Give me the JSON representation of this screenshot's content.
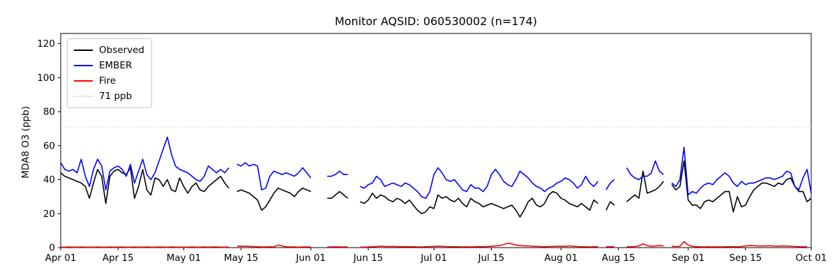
{
  "title": "Monitor AQSID: 060530002 (n=174)",
  "legend": {
    "items": [
      {
        "label": "Observed",
        "color": "#000000",
        "style": "solid"
      },
      {
        "label": "EMBER",
        "color": "#0000ff",
        "style": "solid"
      },
      {
        "label": "Fire",
        "color": "#ff0000",
        "style": "solid"
      },
      {
        "label": "71 ppb",
        "color": "#d3d3d3",
        "style": "dotted"
      }
    ]
  },
  "chart_data": {
    "type": "line",
    "title": "Monitor AQSID: 060530002 (n=174)",
    "xlabel": "",
    "ylabel": "MDA8 O3 (ppb)",
    "x_unit": "days since Apr 01",
    "xlim": [
      0,
      183
    ],
    "ylim": [
      0,
      126
    ],
    "grid": false,
    "legend_position": "upper left",
    "y_ticks": [
      0,
      20,
      40,
      60,
      80,
      100,
      120
    ],
    "x_ticks": [
      {
        "day": 0,
        "label": "Apr 01"
      },
      {
        "day": 14,
        "label": "Apr 15"
      },
      {
        "day": 30,
        "label": "May 01"
      },
      {
        "day": 44,
        "label": "May 15"
      },
      {
        "day": 61,
        "label": "Jun 01"
      },
      {
        "day": 75,
        "label": "Jun 15"
      },
      {
        "day": 91,
        "label": "Jul 01"
      },
      {
        "day": 105,
        "label": "Jul 15"
      },
      {
        "day": 122,
        "label": "Aug 01"
      },
      {
        "day": 136,
        "label": "Aug 15"
      },
      {
        "day": 153,
        "label": "Sep 01"
      },
      {
        "day": 167,
        "label": "Sep 15"
      },
      {
        "day": 183,
        "label": "Oct 01"
      }
    ],
    "threshold": {
      "value": 71,
      "label": "71 ppb",
      "color": "#d3d3d3",
      "line_style": "dotted"
    },
    "series": [
      {
        "name": "Observed",
        "color": "#000000",
        "values": [
          44,
          42,
          41,
          40,
          39,
          38,
          36,
          29,
          38,
          46,
          42,
          26,
          42,
          45,
          46,
          44,
          43,
          47,
          29,
          36,
          46,
          34,
          31,
          41,
          40,
          36,
          40,
          34,
          33,
          41,
          36,
          32,
          36,
          38,
          34,
          33,
          36,
          38,
          40,
          42,
          38,
          35,
          null,
          33,
          34,
          33,
          32,
          30,
          28,
          22,
          24,
          28,
          32,
          35,
          34,
          33,
          32,
          30,
          33,
          35,
          34,
          33,
          null,
          null,
          null,
          29,
          29,
          31,
          33,
          31,
          29,
          null,
          null,
          27,
          26,
          28,
          32,
          29,
          31,
          30,
          28,
          27,
          29,
          28,
          26,
          28,
          25,
          22,
          20,
          21,
          24,
          23,
          31,
          29,
          30,
          28,
          27,
          29,
          26,
          24,
          29,
          27,
          26,
          24,
          25,
          26,
          25,
          24,
          23,
          24,
          25,
          22,
          18,
          22,
          27,
          29,
          25,
          24,
          26,
          31,
          33,
          32,
          29,
          28,
          26,
          25,
          24,
          26,
          24,
          22,
          28,
          26,
          null,
          22,
          27,
          25,
          null,
          null,
          27,
          29,
          31,
          29,
          45,
          32,
          33,
          34,
          36,
          39,
          null,
          37,
          34,
          36,
          51,
          28,
          25,
          25,
          23,
          27,
          28,
          27,
          29,
          31,
          33,
          33,
          21,
          30,
          24,
          25,
          30,
          34,
          36,
          38,
          38,
          37,
          36,
          38,
          37,
          40,
          41,
          36,
          33,
          33,
          27,
          29
        ]
      },
      {
        "name": "EMBER",
        "color": "#0000ff",
        "values": [
          50,
          46,
          45,
          46,
          44,
          52,
          42,
          36,
          46,
          52,
          48,
          34,
          45,
          47,
          48,
          46,
          42,
          49,
          38,
          45,
          52,
          43,
          40,
          44,
          51,
          58,
          65,
          55,
          48,
          46,
          45,
          44,
          42,
          40,
          39,
          42,
          48,
          46,
          44,
          46,
          44,
          47,
          null,
          49,
          48,
          50,
          48,
          49,
          48,
          34,
          35,
          42,
          45,
          44,
          43,
          44,
          43,
          42,
          44,
          47,
          44,
          41,
          null,
          null,
          null,
          42,
          42,
          43,
          45,
          43,
          43,
          null,
          null,
          36,
          35,
          37,
          38,
          42,
          40,
          36,
          37,
          38,
          37,
          36,
          38,
          37,
          35,
          33,
          30,
          29,
          33,
          43,
          47,
          44,
          40,
          39,
          40,
          37,
          34,
          33,
          37,
          35,
          35,
          33,
          36,
          43,
          46,
          43,
          39,
          37,
          36,
          40,
          45,
          43,
          41,
          38,
          36,
          35,
          33,
          35,
          36,
          38,
          39,
          41,
          40,
          38,
          35,
          37,
          42,
          38,
          36,
          39,
          null,
          34,
          38,
          40,
          null,
          null,
          47,
          43,
          41,
          40,
          42,
          42,
          44,
          51,
          45,
          43,
          null,
          38,
          36,
          40,
          59,
          31,
          33,
          32,
          35,
          37,
          38,
          37,
          40,
          42,
          44,
          42,
          38,
          36,
          39,
          37,
          38,
          38,
          39,
          40,
          41,
          41,
          40,
          41,
          42,
          45,
          44,
          36,
          34,
          41,
          46,
          32
        ]
      },
      {
        "name": "Fire",
        "color": "#ff0000",
        "values": [
          0.3,
          0.3,
          0.4,
          0.3,
          0.3,
          0.4,
          0.3,
          0.3,
          0.3,
          0.4,
          0.3,
          0.3,
          0.4,
          0.3,
          0.3,
          0.4,
          0.3,
          0.3,
          0.4,
          0.3,
          0.3,
          0.4,
          0.3,
          0.3,
          0.4,
          0.3,
          0.3,
          0.4,
          0.3,
          0.3,
          0.3,
          0.3,
          0.4,
          0.3,
          0.3,
          0.4,
          0.3,
          0.4,
          0.4,
          0.3,
          0.3,
          0.4,
          null,
          0.8,
          0.9,
          0.8,
          0.7,
          0.6,
          0.5,
          0.4,
          0.4,
          0.5,
          0.4,
          1.5,
          1.0,
          0.5,
          0.4,
          0.4,
          0.3,
          0.4,
          0.4,
          0.4,
          null,
          null,
          null,
          0.4,
          0.4,
          0.5,
          0.4,
          0.4,
          0.4,
          null,
          null,
          0.3,
          0.3,
          0.4,
          0.5,
          0.6,
          0.8,
          0.7,
          0.6,
          0.7,
          0.6,
          0.5,
          0.6,
          0.5,
          0.5,
          0.4,
          0.4,
          0.5,
          0.6,
          0.7,
          0.8,
          0.7,
          0.6,
          0.5,
          0.6,
          0.5,
          0.4,
          0.5,
          0.4,
          0.5,
          0.6,
          0.5,
          0.6,
          0.8,
          1.0,
          1.2,
          1.8,
          2.5,
          2.2,
          1.5,
          1.2,
          1.0,
          1.0,
          0.8,
          0.7,
          0.6,
          0.5,
          0.6,
          0.7,
          0.8,
          0.8,
          0.7,
          1.0,
          0.8,
          0.6,
          0.5,
          0.5,
          0.4,
          0.5,
          0.6,
          null,
          0.5,
          0.5,
          0.6,
          null,
          null,
          0.5,
          0.5,
          0.6,
          1.0,
          2.2,
          1.2,
          0.8,
          1.0,
          1.2,
          1.0,
          null,
          0.8,
          0.6,
          0.8,
          3.5,
          1.5,
          0.8,
          0.5,
          0.5,
          0.4,
          0.5,
          0.4,
          0.5,
          0.4,
          0.5,
          0.6,
          0.5,
          0.5,
          0.6,
          1.0,
          1.2,
          1.1,
          1.0,
          0.9,
          1.0,
          1.1,
          0.9,
          0.8,
          1.0,
          0.9,
          0.8,
          0.6,
          0.5,
          0.5,
          0.6,
          null
        ]
      }
    ]
  }
}
